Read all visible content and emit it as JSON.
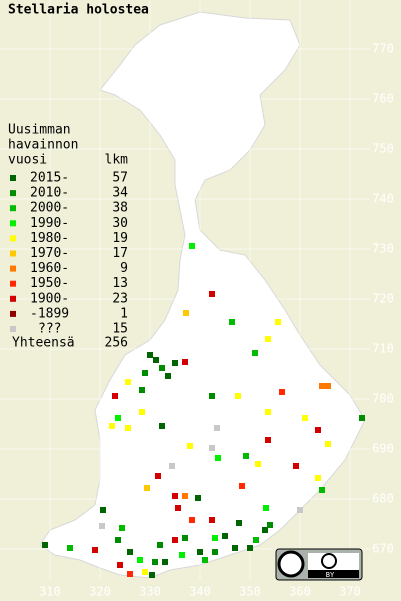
{
  "title": "Stellaria holostea",
  "legend": {
    "heading": [
      "Uusimman",
      "havainnon",
      "vuosi"
    ],
    "count_heading": "lkm",
    "rows": [
      {
        "label": "2015-",
        "count": 57,
        "color": "#006400"
      },
      {
        "label": "2010-",
        "count": 34,
        "color": "#008c00"
      },
      {
        "label": "2000-",
        "count": 38,
        "color": "#00bb00"
      },
      {
        "label": "1990-",
        "count": 30,
        "color": "#00ee00"
      },
      {
        "label": "1980-",
        "count": 19,
        "color": "#ffff00"
      },
      {
        "label": "1970-",
        "count": 17,
        "color": "#ffc800"
      },
      {
        "label": "1960-",
        "count": 9,
        "color": "#ff7800"
      },
      {
        "label": "1950-",
        "count": 13,
        "color": "#ff2800"
      },
      {
        "label": "1900-",
        "count": 23,
        "color": "#d20000"
      },
      {
        "label": "-1899",
        "count": 1,
        "color": "#8c0000"
      },
      {
        "label": "???",
        "count": 15,
        "color": "#c8c8c8"
      }
    ],
    "total_label": "Yhteensä",
    "total": 256
  },
  "grid": {
    "x_labels": [
      "310",
      "320",
      "330",
      "340",
      "350",
      "360",
      "370"
    ],
    "y_labels": [
      "670",
      "680",
      "690",
      "700",
      "710",
      "720",
      "730",
      "740",
      "750",
      "760",
      "770"
    ]
  },
  "license": {
    "label": "BY"
  }
}
